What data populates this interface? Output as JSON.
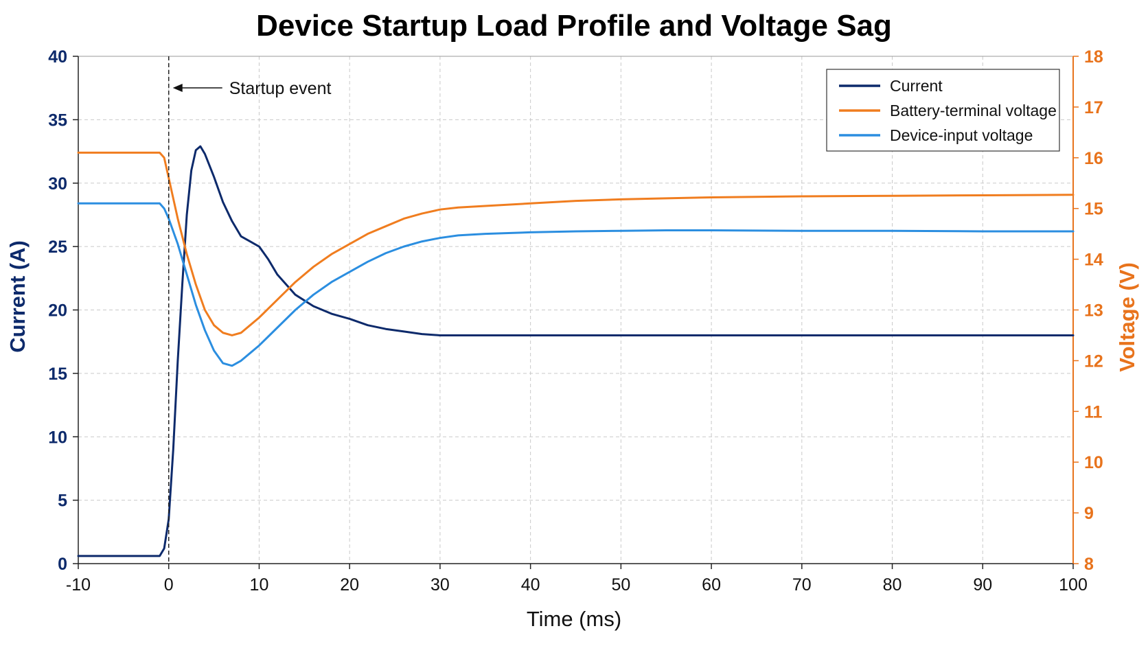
{
  "chart_data": {
    "type": "line",
    "title": "Device Startup Load Profile and Voltage Sag",
    "xlabel": "Time (ms)",
    "ylabel_left": "Current (A)",
    "ylabel_right": "Voltage (V)",
    "xlim": [
      -10,
      100
    ],
    "ylim_left": [
      0,
      40
    ],
    "ylim_right": [
      8,
      18
    ],
    "xticks": [
      "-10",
      "0",
      "10",
      "20",
      "30",
      "40",
      "50",
      "60",
      "70",
      "80",
      "90",
      "100"
    ],
    "yticks_left": [
      "0",
      "5",
      "10",
      "15",
      "20",
      "25",
      "30",
      "35",
      "40"
    ],
    "yticks_right": [
      "8",
      "9",
      "10",
      "11",
      "12",
      "13",
      "14",
      "15",
      "16",
      "17",
      "18"
    ],
    "grid": true,
    "legend_position": "top-right",
    "annotation": {
      "text": "Startup event",
      "x": 0
    },
    "colors": {
      "current": "#0d2a6b",
      "battery": "#f07d1f",
      "device": "#2b8ee0",
      "axis_left": "#0d2a6b",
      "axis_right": "#e8731c"
    },
    "series": [
      {
        "name": "Current",
        "axis": "left",
        "x": [
          -10,
          -5,
          -1,
          -0.5,
          0,
          0.5,
          1,
          1.5,
          2,
          2.5,
          3,
          3.5,
          4,
          5,
          6,
          7,
          8,
          9,
          10,
          11,
          12,
          14,
          16,
          18,
          20,
          22,
          24,
          26,
          28,
          30,
          35,
          40,
          50,
          60,
          70,
          80,
          90,
          100
        ],
        "y": [
          0.6,
          0.6,
          0.6,
          1.2,
          3.5,
          9,
          16,
          22,
          27.5,
          31,
          32.6,
          32.9,
          32.3,
          30.5,
          28.5,
          27,
          25.8,
          25.4,
          25,
          24,
          22.8,
          21.2,
          20.3,
          19.7,
          19.3,
          18.8,
          18.5,
          18.3,
          18.1,
          18,
          18,
          18,
          18,
          18,
          18,
          18,
          18,
          18
        ]
      },
      {
        "name": "Battery-terminal voltage",
        "axis": "right",
        "x": [
          -10,
          -5,
          -1,
          -0.5,
          0,
          1,
          2,
          3,
          4,
          5,
          6,
          7,
          8,
          9,
          10,
          12,
          14,
          16,
          18,
          20,
          22,
          24,
          26,
          28,
          30,
          32,
          35,
          40,
          45,
          50,
          55,
          60,
          70,
          80,
          90,
          100
        ],
        "y": [
          16.1,
          16.1,
          16.1,
          16.0,
          15.6,
          14.8,
          14.1,
          13.5,
          13.0,
          12.7,
          12.55,
          12.5,
          12.55,
          12.7,
          12.85,
          13.2,
          13.55,
          13.85,
          14.1,
          14.3,
          14.5,
          14.65,
          14.8,
          14.9,
          14.98,
          15.02,
          15.05,
          15.1,
          15.15,
          15.18,
          15.2,
          15.22,
          15.24,
          15.25,
          15.26,
          15.27
        ]
      },
      {
        "name": "Device-input voltage",
        "axis": "right",
        "x": [
          -10,
          -5,
          -1,
          -0.5,
          0,
          1,
          2,
          3,
          4,
          5,
          6,
          7,
          8,
          9,
          10,
          12,
          14,
          16,
          18,
          20,
          22,
          24,
          26,
          28,
          30,
          32,
          35,
          40,
          45,
          50,
          55,
          60,
          70,
          80,
          90,
          100
        ],
        "y": [
          15.1,
          15.1,
          15.1,
          15.0,
          14.8,
          14.3,
          13.7,
          13.1,
          12.6,
          12.2,
          11.95,
          11.9,
          12.0,
          12.15,
          12.3,
          12.65,
          13.0,
          13.3,
          13.55,
          13.75,
          13.95,
          14.12,
          14.25,
          14.35,
          14.42,
          14.47,
          14.5,
          14.53,
          14.55,
          14.56,
          14.57,
          14.57,
          14.56,
          14.56,
          14.55,
          14.55
        ]
      }
    ]
  }
}
